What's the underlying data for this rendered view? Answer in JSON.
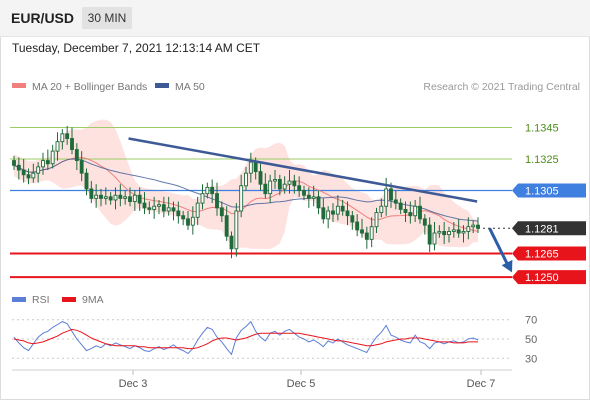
{
  "header": {
    "symbol": "EUR/USD",
    "timeframe": "30 MIN",
    "datetime": "Tuesday, December 7, 2021 12:13:14 AM CET"
  },
  "legend": {
    "ma20_label": "MA 20 + Bollinger Bands",
    "ma50_label": "MA 50",
    "copyright": "Research © 2021 Trading Central",
    "rsi_label": "RSI",
    "ma9_label": "9MA"
  },
  "colors": {
    "ma20": "#f0807c",
    "ma50": "#3d5a96",
    "bollinger_fill": "#fde0de",
    "resistance": "#9ccc65",
    "pivot": "#3f7fe0",
    "support": "#e8141c",
    "trendline": "#3d5a96",
    "arrow": "#2b5ea8",
    "candle": "#1f6b3a",
    "rsi": "#5b7fd6",
    "ma9": "#e8141c",
    "current_price_tag": "#333333"
  },
  "chart_data": [
    {
      "type": "candlestick",
      "title": "EUR/USD",
      "timeframe": "30 MIN",
      "x_ticks": [
        "Dec 3",
        "Dec 5",
        "Dec 7"
      ],
      "y_range": [
        1.1245,
        1.1365
      ],
      "levels": [
        {
          "value": 1.1345,
          "label": "1.1345",
          "role": "resistance"
        },
        {
          "value": 1.1325,
          "label": "1.1325",
          "role": "resistance"
        },
        {
          "value": 1.1305,
          "label": "1.1305",
          "role": "pivot"
        },
        {
          "value": 1.1281,
          "label": "1.1281",
          "role": "current"
        },
        {
          "value": 1.1265,
          "label": "1.1265",
          "role": "support"
        },
        {
          "value": 1.125,
          "label": "1.1250",
          "role": "support"
        }
      ],
      "trendline": {
        "from": [
          0.23,
          1.1338
        ],
        "to": [
          0.93,
          1.1298
        ]
      },
      "projection_arrow": {
        "from": [
          0.955,
          1.1281
        ],
        "to": [
          1.0,
          1.1253
        ]
      },
      "close": [
        1.1321,
        1.1318,
        1.1315,
        1.1313,
        1.1316,
        1.132,
        1.1324,
        1.1322,
        1.133,
        1.1336,
        1.1341,
        1.1338,
        1.1331,
        1.1324,
        1.1316,
        1.1306,
        1.13,
        1.1302,
        1.13,
        1.1301,
        1.1299,
        1.1302,
        1.13,
        1.1301,
        1.1298,
        1.1302,
        1.1297,
        1.1294,
        1.1293,
        1.1295,
        1.1296,
        1.1292,
        1.1294,
        1.1292,
        1.1289,
        1.1287,
        1.1283,
        1.1288,
        1.1297,
        1.1303,
        1.1307,
        1.1303,
        1.1294,
        1.1289,
        1.1276,
        1.1268,
        1.1292,
        1.1308,
        1.1316,
        1.1323,
        1.1317,
        1.1309,
        1.1303,
        1.1311,
        1.1312,
        1.1306,
        1.1309,
        1.1311,
        1.1308,
        1.1305,
        1.1302,
        1.13,
        1.1301,
        1.1294,
        1.1287,
        1.1292,
        1.129,
        1.1295,
        1.1292,
        1.1289,
        1.1285,
        1.128,
        1.1278,
        1.1274,
        1.1282,
        1.1291,
        1.1295,
        1.1306,
        1.1299,
        1.1297,
        1.1293,
        1.1291,
        1.1289,
        1.1295,
        1.1287,
        1.1283,
        1.1271,
        1.1278,
        1.1279,
        1.1277,
        1.1279,
        1.128,
        1.1278,
        1.1279,
        1.1282,
        1.1283,
        1.1281
      ]
    },
    {
      "type": "line",
      "title": "RSI",
      "series": [
        {
          "name": "RSI"
        },
        {
          "name": "9MA"
        }
      ],
      "y_ticks": [
        70,
        50,
        30
      ],
      "y_range": [
        22,
        78
      ],
      "rsi": [
        52,
        46,
        41,
        38,
        45,
        52,
        56,
        58,
        62,
        65,
        68,
        66,
        58,
        50,
        44,
        38,
        40,
        43,
        41,
        45,
        43,
        46,
        44,
        42,
        40,
        43,
        41,
        38,
        37,
        40,
        42,
        39,
        41,
        44,
        40,
        38,
        35,
        40,
        49,
        56,
        62,
        60,
        52,
        47,
        40,
        34,
        51,
        59,
        63,
        68,
        58,
        52,
        48,
        56,
        58,
        54,
        58,
        60,
        56,
        52,
        50,
        47,
        49,
        46,
        42,
        48,
        46,
        50,
        47,
        44,
        42,
        40,
        38,
        36,
        45,
        52,
        57,
        64,
        54,
        52,
        49,
        47,
        46,
        54,
        47,
        45,
        40,
        46,
        47,
        45,
        47,
        48,
        46,
        47,
        50,
        51,
        49
      ],
      "ma9": [
        50,
        49,
        48,
        46,
        45,
        46,
        47,
        49,
        51,
        53,
        56,
        58,
        60,
        59,
        57,
        54,
        51,
        49,
        47,
        45,
        44,
        43,
        43,
        43,
        43,
        43,
        42,
        42,
        41,
        41,
        41,
        41,
        41,
        41,
        41,
        41,
        40,
        40,
        41,
        43,
        45,
        48,
        50,
        51,
        51,
        50,
        49,
        50,
        51,
        53,
        55,
        56,
        56,
        56,
        56,
        56,
        56,
        56,
        56,
        56,
        55,
        54,
        53,
        52,
        51,
        50,
        49,
        48,
        48,
        47,
        46,
        45,
        44,
        43,
        43,
        44,
        45,
        47,
        48,
        49,
        50,
        50,
        51,
        51,
        51,
        50,
        49,
        48,
        47,
        47,
        47,
        46,
        46,
        46,
        47,
        47,
        47
      ]
    }
  ]
}
